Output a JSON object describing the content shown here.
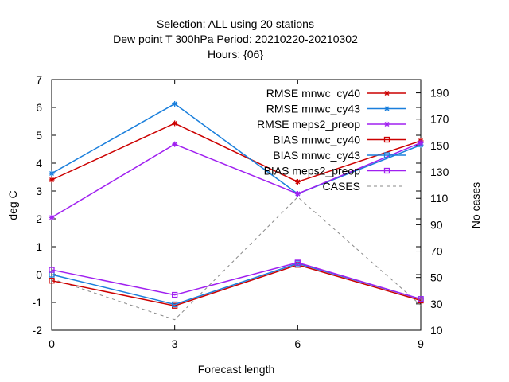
{
  "chart_data": {
    "type": "line",
    "title_lines": [
      "Selection: ALL using    20 stations",
      "Dew point T 300hPa   Period: 20210220-20210302",
      "Hours: {06}"
    ],
    "xlabel": "Forecast length",
    "ylabel": "deg C",
    "y2label": "No cases",
    "x": [
      0,
      3,
      6,
      9
    ],
    "xlim": [
      0,
      9
    ],
    "ylim": [
      -2,
      7
    ],
    "y2lim": [
      10,
      200
    ],
    "xticks": [
      "0",
      "3",
      "6",
      "9"
    ],
    "yticks": [
      "-2",
      "-1",
      "0",
      "1",
      "2",
      "3",
      "4",
      "5",
      "6",
      "7"
    ],
    "y2ticks": [
      "10",
      "30",
      "50",
      "70",
      "90",
      "110",
      "130",
      "150",
      "170",
      "190"
    ],
    "legend_position": "top-right",
    "series": [
      {
        "name": "RMSE mnwc_cy40",
        "values": [
          3.4,
          5.43,
          3.33,
          4.8
        ],
        "color": "#cc0000",
        "marker": "star",
        "axis": "y"
      },
      {
        "name": "RMSE mnwc_cy43",
        "values": [
          3.63,
          6.13,
          2.9,
          4.65
        ],
        "color": "#1a7fdc",
        "marker": "star",
        "axis": "y"
      },
      {
        "name": "RMSE meps2_preop",
        "values": [
          2.05,
          4.68,
          2.9,
          4.73
        ],
        "color": "#a020f0",
        "marker": "star",
        "axis": "y"
      },
      {
        "name": "BIAS mnwc_cy40",
        "values": [
          -0.22,
          -1.12,
          0.35,
          -0.93
        ],
        "color": "#cc0000",
        "marker": "square",
        "axis": "y"
      },
      {
        "name": "BIAS mnwc_cy43",
        "values": [
          0.0,
          -1.07,
          0.4,
          -0.88
        ],
        "color": "#1a7fdc",
        "marker": "square",
        "axis": "y"
      },
      {
        "name": "BIAS meps2_preop",
        "values": [
          0.17,
          -0.73,
          0.43,
          -0.88
        ],
        "color": "#a020f0",
        "marker": "square",
        "axis": "y"
      },
      {
        "name": "CASES",
        "values": [
          49,
          18,
          111,
          29
        ],
        "color": "#888888",
        "marker": "none",
        "dashed": true,
        "axis": "y2"
      }
    ]
  }
}
